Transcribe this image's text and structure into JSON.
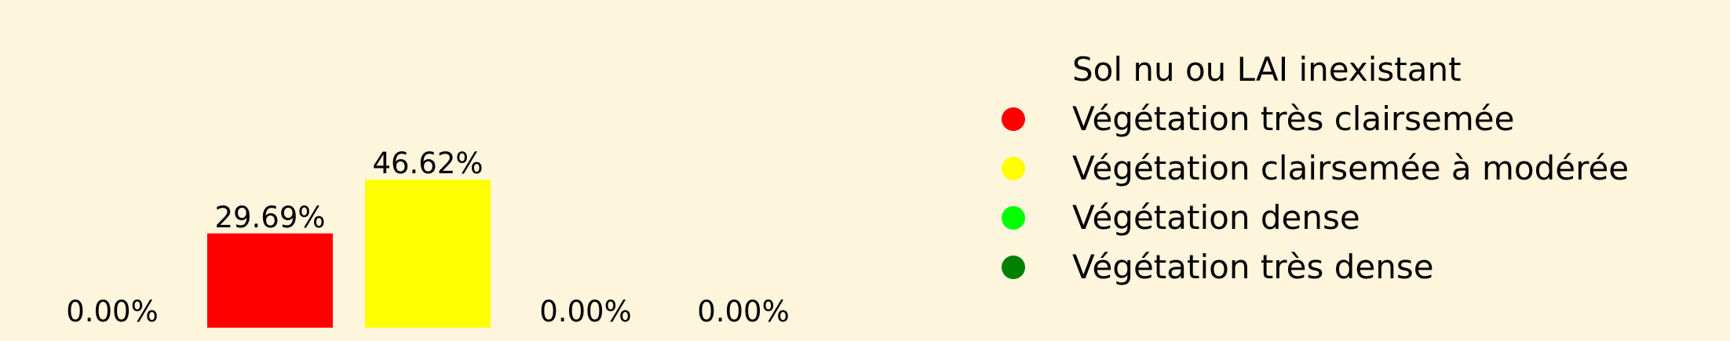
{
  "chart_data": {
    "type": "bar",
    "categories": [
      "Sol nu ou LAI inexistant",
      "Végétation très clairsemée",
      "Végétation clairsemée à modérée",
      "Végétation dense",
      "Végétation très dense"
    ],
    "values": [
      0.0,
      29.69,
      46.62,
      0.0,
      0.0
    ],
    "value_labels": [
      "0.00%",
      "29.69%",
      "46.62%",
      "0.00%",
      "0.00%"
    ],
    "colors": [
      "#fdf5dc",
      "#ff0000",
      "#ffff00",
      "#00ff00",
      "#008000"
    ],
    "ylim": [
      0,
      100
    ],
    "title": "",
    "xlabel": "",
    "ylabel": "",
    "grid": false,
    "legend_placement": "right",
    "background": "#fdf5dc"
  }
}
